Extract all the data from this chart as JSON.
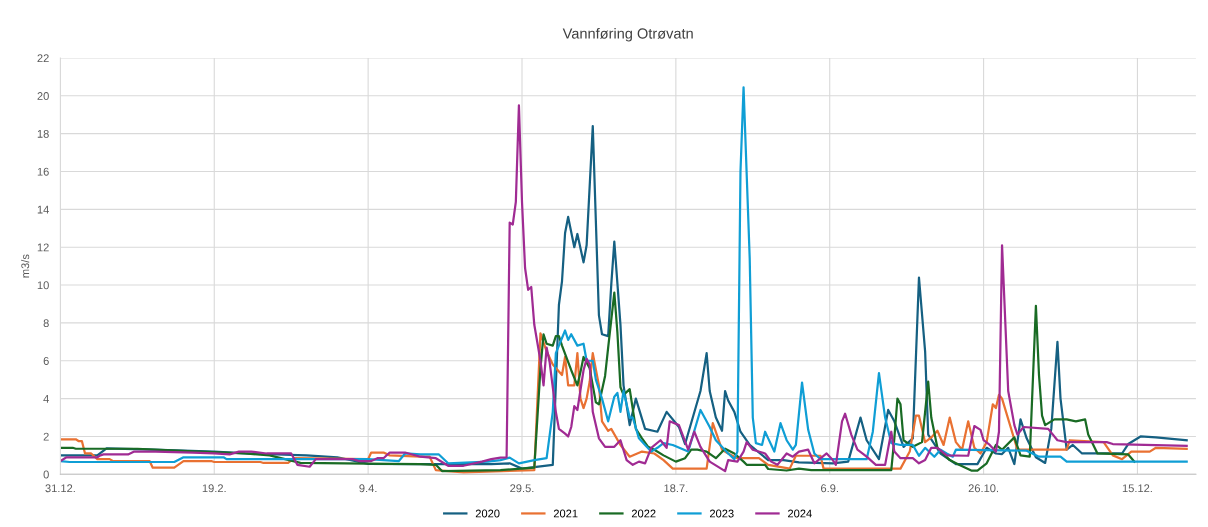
{
  "chart_data": {
    "type": "line",
    "title": "Vannføring Otrøvatn",
    "ylabel": "m3/s",
    "xlim": [
      "2023-12-31",
      "2025-01-03"
    ],
    "ylim": [
      0,
      22
    ],
    "xticks": [
      {
        "value": "2023-12-31",
        "label": "31.12."
      },
      {
        "value": "2024-02-19",
        "label": "19.2."
      },
      {
        "value": "2024-04-09",
        "label": "9.4."
      },
      {
        "value": "2024-05-29",
        "label": "29.5."
      },
      {
        "value": "2024-07-18",
        "label": "18.7."
      },
      {
        "value": "2024-09-06",
        "label": "6.9."
      },
      {
        "value": "2024-10-26",
        "label": "26.10."
      },
      {
        "value": "2024-12-15",
        "label": "15.12."
      }
    ],
    "yticks": [
      0,
      2,
      4,
      6,
      8,
      10,
      12,
      14,
      16,
      18,
      20,
      22
    ],
    "grid": true,
    "legend": "bottom",
    "marker": "none",
    "line_style": "solid",
    "series": [
      {
        "name": "2020",
        "color": "#156082",
        "x": [
          "2023-12-31",
          "2024-01-12",
          "2024-01-15",
          "2024-01-30",
          "2024-02-19",
          "2024-02-29",
          "2024-03-20",
          "2024-03-30",
          "2024-04-09",
          "2024-04-26",
          "2024-05-19",
          "2024-05-25",
          "2024-05-29",
          "2024-06-08",
          "2024-06-10",
          "2024-06-11",
          "2024-06-12",
          "2024-06-13",
          "2024-06-15",
          "2024-06-16",
          "2024-06-18",
          "2024-06-19",
          "2024-06-21",
          "2024-06-23",
          "2024-06-24",
          "2024-06-26",
          "2024-06-27",
          "2024-06-28",
          "2024-06-30",
          "2024-07-01",
          "2024-07-03",
          "2024-07-05",
          "2024-07-08",
          "2024-07-12",
          "2024-07-15",
          "2024-07-19",
          "2024-07-21",
          "2024-07-26",
          "2024-07-28",
          "2024-07-29",
          "2024-07-31",
          "2024-08-02",
          "2024-08-03",
          "2024-08-04",
          "2024-08-06",
          "2024-08-08",
          "2024-08-11",
          "2024-08-17",
          "2024-08-22",
          "2024-08-27",
          "2024-09-07",
          "2024-09-12",
          "2024-09-16",
          "2024-09-18",
          "2024-09-22",
          "2024-09-25",
          "2024-09-27",
          "2024-09-30",
          "2024-10-03",
          "2024-10-05",
          "2024-10-07",
          "2024-10-08",
          "2024-10-12",
          "2024-10-17",
          "2024-10-24",
          "2024-10-27",
          "2024-10-30",
          "2024-11-01",
          "2024-11-03",
          "2024-11-05",
          "2024-11-07",
          "2024-11-09",
          "2024-11-12",
          "2024-11-15",
          "2024-11-17",
          "2024-11-19",
          "2024-11-20",
          "2024-11-22",
          "2024-11-24",
          "2024-11-27",
          "2024-12-10",
          "2024-12-12",
          "2024-12-16",
          "2024-12-21",
          "2024-12-31"
        ],
        "values": [
          1.0,
          1.0,
          1.37,
          1.3,
          1.2,
          1.1,
          1.0,
          0.9,
          0.55,
          0.54,
          0.54,
          0.58,
          0.3,
          0.5,
          8.96,
          10.2,
          12.75,
          13.6,
          12.0,
          12.7,
          11.2,
          12.1,
          18.4,
          8.4,
          7.4,
          7.3,
          10.0,
          12.3,
          7.9,
          4.7,
          2.6,
          4.0,
          2.4,
          2.25,
          3.3,
          2.5,
          1.6,
          4.4,
          6.4,
          4.4,
          3.0,
          2.3,
          4.4,
          3.9,
          3.3,
          2.25,
          1.55,
          0.75,
          0.75,
          0.63,
          0.58,
          0.67,
          3.0,
          1.8,
          0.8,
          3.4,
          2.8,
          1.45,
          1.9,
          10.4,
          6.5,
          2.1,
          1.1,
          0.54,
          0.54,
          1.4,
          1.1,
          1.07,
          1.4,
          0.54,
          2.9,
          1.9,
          0.9,
          0.6,
          2.4,
          7.0,
          4.0,
          1.3,
          1.55,
          1.1,
          1.1,
          1.6,
          2.0,
          1.95,
          1.8
        ]
      },
      {
        "name": "2021",
        "color": "#e97132",
        "x": [
          "2023-12-31",
          "2024-01-05",
          "2024-01-06",
          "2024-01-07",
          "2024-01-08",
          "2024-01-10",
          "2024-01-12",
          "2024-01-16",
          "2024-01-17",
          "2024-01-29",
          "2024-01-30",
          "2024-02-06",
          "2024-02-09",
          "2024-02-18",
          "2024-02-19",
          "2024-03-05",
          "2024-03-06",
          "2024-03-14",
          "2024-03-16",
          "2024-04-09",
          "2024-04-10",
          "2024-04-14",
          "2024-04-16",
          "2024-04-26",
          "2024-04-29",
          "2024-05-01",
          "2024-05-10",
          "2024-06-02",
          "2024-06-04",
          "2024-06-06",
          "2024-06-08",
          "2024-06-11",
          "2024-06-12",
          "2024-06-13",
          "2024-06-15",
          "2024-06-16",
          "2024-06-17",
          "2024-06-18",
          "2024-06-19",
          "2024-06-20",
          "2024-06-21",
          "2024-06-23",
          "2024-06-24",
          "2024-06-26",
          "2024-06-27",
          "2024-06-30",
          "2024-07-03",
          "2024-07-07",
          "2024-07-11",
          "2024-07-14",
          "2024-07-17",
          "2024-07-28",
          "2024-07-30",
          "2024-08-02",
          "2024-08-04",
          "2024-08-07",
          "2024-08-14",
          "2024-08-17",
          "2024-08-24",
          "2024-08-26",
          "2024-09-03",
          "2024-09-04",
          "2024-09-29",
          "2024-10-02",
          "2024-10-04",
          "2024-10-05",
          "2024-10-07",
          "2024-10-09",
          "2024-10-11",
          "2024-10-13",
          "2024-10-15",
          "2024-10-17",
          "2024-10-19",
          "2024-10-21",
          "2024-10-23",
          "2024-10-25",
          "2024-10-27",
          "2024-10-29",
          "2024-10-30",
          "2024-10-31",
          "2024-11-01",
          "2024-11-06",
          "2024-11-22",
          "2024-11-23",
          "2024-12-04",
          "2024-12-07",
          "2024-12-10",
          "2024-12-13",
          "2024-12-19",
          "2024-12-21",
          "2024-12-31"
        ],
        "values": [
          1.85,
          1.85,
          1.75,
          1.75,
          1.1,
          1.1,
          0.8,
          0.8,
          0.7,
          0.7,
          0.35,
          0.35,
          0.7,
          0.7,
          0.65,
          0.65,
          0.6,
          0.6,
          0.85,
          0.8,
          1.15,
          1.15,
          1.0,
          0.93,
          0.93,
          0.22,
          0.1,
          0.22,
          7.45,
          6.5,
          5.8,
          5.25,
          6.2,
          4.7,
          4.7,
          6.4,
          4.0,
          3.5,
          4.0,
          4.9,
          6.4,
          4.7,
          2.8,
          2.3,
          2.4,
          1.55,
          0.93,
          1.2,
          1.1,
          0.75,
          0.3,
          0.3,
          2.7,
          1.3,
          1.1,
          0.85,
          0.85,
          0.5,
          0.3,
          0.98,
          0.98,
          0.3,
          0.3,
          1.2,
          3.1,
          3.1,
          1.7,
          1.95,
          2.3,
          1.55,
          3.0,
          1.7,
          1.3,
          2.8,
          1.4,
          1.1,
          1.7,
          3.7,
          3.5,
          4.2,
          4.0,
          1.3,
          1.3,
          1.8,
          1.7,
          1.0,
          0.8,
          1.2,
          1.2,
          1.4,
          1.35
        ]
      },
      {
        "name": "2022",
        "color": "#196b24",
        "x": [
          "2023-12-31",
          "2024-01-04",
          "2024-01-05",
          "2024-01-25",
          "2024-02-14",
          "2024-02-29",
          "2024-03-08",
          "2024-03-18",
          "2024-04-16",
          "2024-04-26",
          "2024-05-01",
          "2024-05-03",
          "2024-05-22",
          "2024-06-02",
          "2024-06-04",
          "2024-06-05",
          "2024-06-06",
          "2024-06-08",
          "2024-06-09",
          "2024-06-10",
          "2024-06-11",
          "2024-06-14",
          "2024-06-16",
          "2024-06-17",
          "2024-06-18",
          "2024-06-20",
          "2024-06-22",
          "2024-06-23",
          "2024-06-25",
          "2024-06-26",
          "2024-06-28",
          "2024-06-29",
          "2024-06-30",
          "2024-07-01",
          "2024-07-03",
          "2024-07-05",
          "2024-07-07",
          "2024-07-09",
          "2024-07-11",
          "2024-07-14",
          "2024-07-18",
          "2024-07-21",
          "2024-07-23",
          "2024-07-25",
          "2024-07-28",
          "2024-07-31",
          "2024-08-03",
          "2024-08-06",
          "2024-08-09",
          "2024-08-10",
          "2024-08-16",
          "2024-08-17",
          "2024-08-23",
          "2024-08-27",
          "2024-08-31",
          "2024-09-26",
          "2024-09-27",
          "2024-09-28",
          "2024-09-29",
          "2024-09-30",
          "2024-10-03",
          "2024-10-06",
          "2024-10-08",
          "2024-10-09",
          "2024-10-11",
          "2024-10-15",
          "2024-10-18",
          "2024-10-22",
          "2024-10-24",
          "2024-10-27",
          "2024-10-30",
          "2024-11-01",
          "2024-11-05",
          "2024-11-07",
          "2024-11-10",
          "2024-11-12",
          "2024-11-13",
          "2024-11-14",
          "2024-11-15",
          "2024-11-18",
          "2024-11-22",
          "2024-11-25",
          "2024-11-28",
          "2024-11-29",
          "2024-12-02",
          "2024-12-12",
          "2024-12-14"
        ],
        "values": [
          1.4,
          1.4,
          1.35,
          1.35,
          1.2,
          1.1,
          1.0,
          0.6,
          0.55,
          0.54,
          0.5,
          0.17,
          0.22,
          0.35,
          5.6,
          7.4,
          6.9,
          6.8,
          7.3,
          7.3,
          6.8,
          5.5,
          4.7,
          5.4,
          6.2,
          5.6,
          3.8,
          3.7,
          5.2,
          6.7,
          9.6,
          7.5,
          4.6,
          4.2,
          4.5,
          2.4,
          1.9,
          1.45,
          1.3,
          1.0,
          0.67,
          0.85,
          1.3,
          1.3,
          1.2,
          0.85,
          1.35,
          1.1,
          0.67,
          0.5,
          0.5,
          0.28,
          0.2,
          0.3,
          0.22,
          0.22,
          1.9,
          4.0,
          3.7,
          1.8,
          1.45,
          1.7,
          4.9,
          3.0,
          1.4,
          0.75,
          0.5,
          0.2,
          0.2,
          0.58,
          1.55,
          1.3,
          1.95,
          1.0,
          0.93,
          8.9,
          5.25,
          3.1,
          2.6,
          2.9,
          2.9,
          2.8,
          2.9,
          2.1,
          1.1,
          1.05,
          0.67
        ]
      },
      {
        "name": "2023",
        "color": "#0f9ed5",
        "x": [
          "2023-12-31",
          "2024-01-03",
          "2024-02-06",
          "2024-02-09",
          "2024-02-22",
          "2024-02-23",
          "2024-02-29",
          "2024-03-06",
          "2024-04-09",
          "2024-04-19",
          "2024-04-21",
          "2024-04-26",
          "2024-05-02",
          "2024-05-05",
          "2024-05-18",
          "2024-05-22",
          "2024-05-25",
          "2024-05-28",
          "2024-06-02",
          "2024-06-06",
          "2024-06-08",
          "2024-06-09",
          "2024-06-12",
          "2024-06-13",
          "2024-06-14",
          "2024-06-16",
          "2024-06-18",
          "2024-06-19",
          "2024-06-21",
          "2024-06-22",
          "2024-06-24",
          "2024-06-26",
          "2024-06-28",
          "2024-06-29",
          "2024-06-30",
          "2024-07-01",
          "2024-07-03",
          "2024-07-04",
          "2024-07-06",
          "2024-07-08",
          "2024-07-10",
          "2024-07-12",
          "2024-07-14",
          "2024-07-17",
          "2024-07-22",
          "2024-07-26",
          "2024-07-29",
          "2024-07-31",
          "2024-08-04",
          "2024-08-06",
          "2024-08-07",
          "2024-08-08",
          "2024-08-09",
          "2024-08-11",
          "2024-08-12",
          "2024-08-13",
          "2024-08-15",
          "2024-08-16",
          "2024-08-17",
          "2024-08-19",
          "2024-08-21",
          "2024-08-23",
          "2024-08-25",
          "2024-08-26",
          "2024-08-28",
          "2024-08-30",
          "2024-09-01",
          "2024-09-03",
          "2024-09-18",
          "2024-09-20",
          "2024-09-22",
          "2024-09-24",
          "2024-09-26",
          "2024-09-29",
          "2024-10-03",
          "2024-10-05",
          "2024-10-07",
          "2024-10-10",
          "2024-10-12",
          "2024-10-14",
          "2024-10-16",
          "2024-10-17",
          "2024-11-09",
          "2024-11-13",
          "2024-11-20",
          "2024-11-22",
          "2024-12-31"
        ],
        "values": [
          0.7,
          0.65,
          0.65,
          0.9,
          0.9,
          0.8,
          0.8,
          0.8,
          0.8,
          0.7,
          1.1,
          1.05,
          1.05,
          0.58,
          0.67,
          0.75,
          0.88,
          0.58,
          0.75,
          0.85,
          3.3,
          6.4,
          7.6,
          7.1,
          7.4,
          6.8,
          6.9,
          6.0,
          6.0,
          5.0,
          4.0,
          2.8,
          4.1,
          4.3,
          3.3,
          4.4,
          3.0,
          3.0,
          1.9,
          1.55,
          1.2,
          1.4,
          1.65,
          1.55,
          1.2,
          3.4,
          2.5,
          1.8,
          1.1,
          0.8,
          1.2,
          16.0,
          20.45,
          11.4,
          3.0,
          1.65,
          1.55,
          2.25,
          1.9,
          1.2,
          2.7,
          1.8,
          1.3,
          1.55,
          4.85,
          2.35,
          1.1,
          0.8,
          0.8,
          2.25,
          5.35,
          3.0,
          1.65,
          1.55,
          1.55,
          0.98,
          1.4,
          0.93,
          1.3,
          1.1,
          0.93,
          1.3,
          1.25,
          0.93,
          0.93,
          0.67,
          0.67
        ]
      },
      {
        "name": "2024",
        "color": "#a02b93",
        "x": [
          "2023-12-31",
          "2024-01-02",
          "2024-01-12",
          "2024-01-13",
          "2024-01-14",
          "2024-01-22",
          "2024-01-24",
          "2024-01-31",
          "2024-02-12",
          "2024-02-19",
          "2024-02-24",
          "2024-02-27",
          "2024-03-02",
          "2024-03-07",
          "2024-03-15",
          "2024-03-17",
          "2024-03-21",
          "2024-03-23",
          "2024-04-04",
          "2024-04-06",
          "2024-04-10",
          "2024-04-12",
          "2024-04-14",
          "2024-04-16",
          "2024-04-21",
          "2024-04-26",
          "2024-05-01",
          "2024-05-05",
          "2024-05-10",
          "2024-05-16",
          "2024-05-19",
          "2024-05-22",
          "2024-05-24",
          "2024-05-25",
          "2024-05-26",
          "2024-05-27",
          "2024-05-28",
          "2024-05-29",
          "2024-05-30",
          "2024-05-31",
          "2024-06-01",
          "2024-06-02",
          "2024-06-04",
          "2024-06-05",
          "2024-06-06",
          "2024-06-07",
          "2024-06-09",
          "2024-06-10",
          "2024-06-12",
          "2024-06-13",
          "2024-06-14",
          "2024-06-15",
          "2024-06-16",
          "2024-06-18",
          "2024-06-19",
          "2024-06-20",
          "2024-06-21",
          "2024-06-23",
          "2024-06-25",
          "2024-06-28",
          "2024-06-30",
          "2024-07-02",
          "2024-07-04",
          "2024-07-06",
          "2024-07-08",
          "2024-07-10",
          "2024-07-13",
          "2024-07-15",
          "2024-07-16",
          "2024-07-19",
          "2024-07-22",
          "2024-07-24",
          "2024-07-26",
          "2024-07-29",
          "2024-08-03",
          "2024-08-04",
          "2024-08-07",
          "2024-08-09",
          "2024-08-10",
          "2024-08-12",
          "2024-08-16",
          "2024-08-18",
          "2024-08-20",
          "2024-08-23",
          "2024-08-25",
          "2024-08-27",
          "2024-08-30",
          "2024-09-01",
          "2024-09-05",
          "2024-09-07",
          "2024-09-08",
          "2024-09-10",
          "2024-09-11",
          "2024-09-13",
          "2024-09-15",
          "2024-09-18",
          "2024-09-21",
          "2024-09-24",
          "2024-09-26",
          "2024-09-27",
          "2024-09-29",
          "2024-10-03",
          "2024-10-05",
          "2024-10-07",
          "2024-10-09",
          "2024-10-11",
          "2024-10-14",
          "2024-10-21",
          "2024-10-23",
          "2024-10-25",
          "2024-10-26",
          "2024-10-28",
          "2024-10-30",
          "2024-10-31",
          "2024-11-01",
          "2024-11-03",
          "2024-11-05",
          "2024-11-06",
          "2024-11-08",
          "2024-11-16",
          "2024-11-19",
          "2024-11-22",
          "2024-12-05",
          "2024-12-07",
          "2024-12-31"
        ],
        "values": [
          0.7,
          0.9,
          0.9,
          1.0,
          1.05,
          1.05,
          1.2,
          1.2,
          1.15,
          1.1,
          1.05,
          1.2,
          1.2,
          1.1,
          1.1,
          0.5,
          0.4,
          0.8,
          0.8,
          0.7,
          0.7,
          0.85,
          0.85,
          1.15,
          1.15,
          0.93,
          0.85,
          0.45,
          0.45,
          0.67,
          0.8,
          0.88,
          0.9,
          13.3,
          13.2,
          14.4,
          19.5,
          14.4,
          10.9,
          9.75,
          9.9,
          7.9,
          6.0,
          4.7,
          6.7,
          5.9,
          3.3,
          2.4,
          2.15,
          2.0,
          2.5,
          3.6,
          3.4,
          5.5,
          6.1,
          5.8,
          3.3,
          1.9,
          1.45,
          1.45,
          1.8,
          0.75,
          0.5,
          0.67,
          0.58,
          1.4,
          1.8,
          1.4,
          2.8,
          2.6,
          1.3,
          2.25,
          1.45,
          0.67,
          0.17,
          0.75,
          0.67,
          1.2,
          1.7,
          1.3,
          1.1,
          0.67,
          0.5,
          1.1,
          0.93,
          1.2,
          1.3,
          0.58,
          1.1,
          0.75,
          0.5,
          2.8,
          3.2,
          2.1,
          1.3,
          0.93,
          0.5,
          0.5,
          2.25,
          1.2,
          0.85,
          0.85,
          0.58,
          0.75,
          1.4,
          1.4,
          1.0,
          0.98,
          2.55,
          2.35,
          1.8,
          1.55,
          1.2,
          2.25,
          12.1,
          4.4,
          2.6,
          2.1,
          2.5,
          2.4,
          1.8,
          1.7,
          1.7,
          1.6,
          1.5
        ]
      }
    ]
  }
}
